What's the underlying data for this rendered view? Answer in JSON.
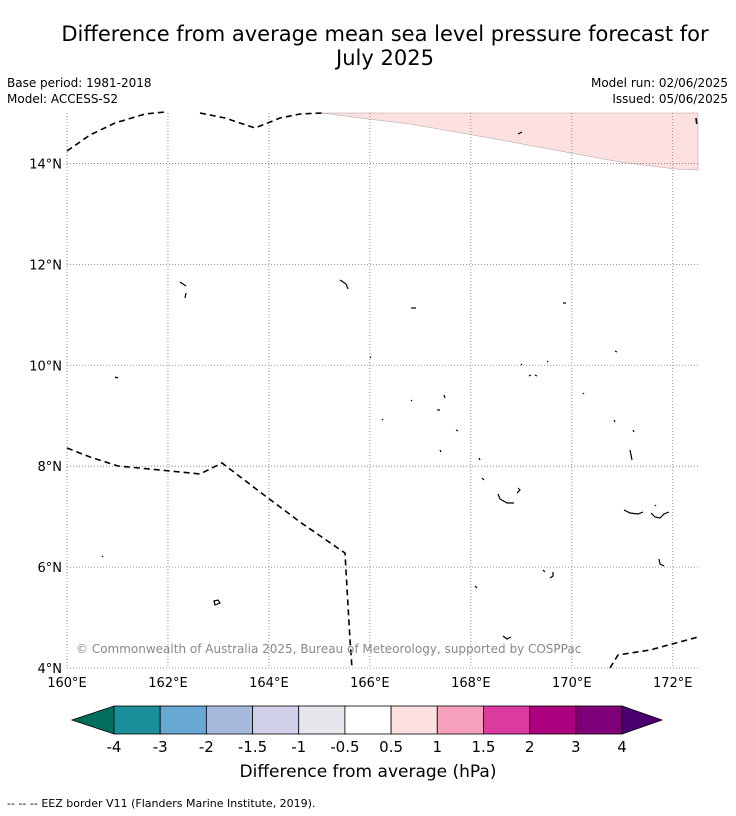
{
  "header": {
    "title_line1": "Difference from average mean sea level pressure forecast for",
    "title_line2": "July 2025",
    "base_period": "Base period: 1981-2018",
    "model": "Model: ACCESS-S2",
    "model_run": "Model run: 02/06/2025",
    "issued": "Issued: 05/06/2025"
  },
  "map": {
    "lon_range": [
      160,
      172.5
    ],
    "lat_range": [
      4,
      15
    ],
    "lon_ticks": [
      {
        "value": 160,
        "label": "160°E"
      },
      {
        "value": 162,
        "label": "162°E"
      },
      {
        "value": 164,
        "label": "164°E"
      },
      {
        "value": 166,
        "label": "166°E"
      },
      {
        "value": 168,
        "label": "168°E"
      },
      {
        "value": 170,
        "label": "170°E"
      },
      {
        "value": 172,
        "label": "172°E"
      }
    ],
    "lat_ticks": [
      {
        "value": 4,
        "label": "4°N"
      },
      {
        "value": 6,
        "label": "6°N"
      },
      {
        "value": 8,
        "label": "8°N"
      },
      {
        "value": 10,
        "label": "10°N"
      },
      {
        "value": 12,
        "label": "12°N"
      },
      {
        "value": 14,
        "label": "14°N"
      }
    ],
    "copyright": "© Commonwealth of Australia 2025, Bureau of Meteorology, supported by COSPPac",
    "anomaly_fill_color": "#fde0e0"
  },
  "colorbar": {
    "label": "Difference from average (hPa)",
    "ticks": [
      "-4",
      "-3",
      "-2",
      "-1.5",
      "-1",
      "-0.5",
      "0.5",
      "1",
      "1.5",
      "2",
      "3",
      "4"
    ],
    "low_extend_color": "#006e5a",
    "high_extend_color": "#4c0070",
    "colors": [
      "#1a8f9b",
      "#68a8d4",
      "#a6b9dc",
      "#cfd0e8",
      "#e7e6ec",
      "#ffffff",
      "#fde0e0",
      "#f6a0bc",
      "#db3a9e",
      "#ad007f",
      "#7e0078"
    ]
  },
  "legend": {
    "eez_line_symbol": "-- -- --",
    "eez_text": "EEZ border V11 (Flanders Marine Institute, 2019)."
  }
}
